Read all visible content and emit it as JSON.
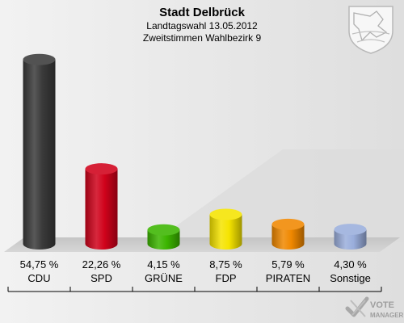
{
  "header": {
    "title": "Stadt Delbrück",
    "subtitle1": "Landtagswahl 13.05.2012",
    "subtitle2": "Zweitstimmen Wahlbezirk 9"
  },
  "watermark": {
    "line1": "VOTE",
    "line2": "MANAGER"
  },
  "chart_data": {
    "type": "bar",
    "title": "Stadt Delbrück",
    "subtitle": "Landtagswahl 13.05.2012 / Zweitstimmen Wahlbezirk 9",
    "categories": [
      "CDU",
      "SPD",
      "GRÜNE",
      "FDP",
      "PIRATEN",
      "Sonstige"
    ],
    "values": [
      54.75,
      22.26,
      4.15,
      8.75,
      5.79,
      4.3
    ],
    "labels": [
      "54,75 %",
      "22,26 %",
      "4,15 %",
      "8,75 %",
      "5,79 %",
      "4,30 %"
    ],
    "colors": [
      "#3a3a3a",
      "#d0021b",
      "#3cb500",
      "#f5e400",
      "#f08800",
      "#9aaedc"
    ],
    "ylim": [
      0,
      60
    ],
    "grid": false,
    "legend": "none"
  }
}
